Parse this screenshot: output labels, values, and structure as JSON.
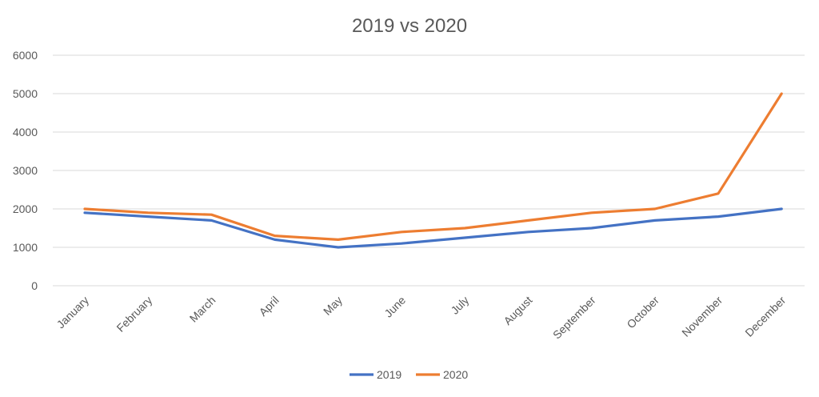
{
  "chart_data": {
    "type": "line",
    "title": "2019 vs 2020",
    "xlabel": "",
    "ylabel": "",
    "categories": [
      "January",
      "February",
      "March",
      "April",
      "May",
      "June",
      "July",
      "August",
      "September",
      "October",
      "November",
      "December"
    ],
    "ylim": [
      0,
      6000
    ],
    "yticks": [
      0,
      1000,
      2000,
      3000,
      4000,
      5000,
      6000
    ],
    "grid": true,
    "legend_position": "bottom",
    "series": [
      {
        "name": "2019",
        "color": "#4472c4",
        "values": [
          1900,
          1800,
          1700,
          1200,
          1000,
          1100,
          1250,
          1400,
          1500,
          1700,
          1800,
          2000
        ]
      },
      {
        "name": "2020",
        "color": "#ed7d31",
        "values": [
          2000,
          1900,
          1850,
          1300,
          1200,
          1400,
          1500,
          1700,
          1900,
          2000,
          2400,
          5000
        ]
      }
    ]
  }
}
